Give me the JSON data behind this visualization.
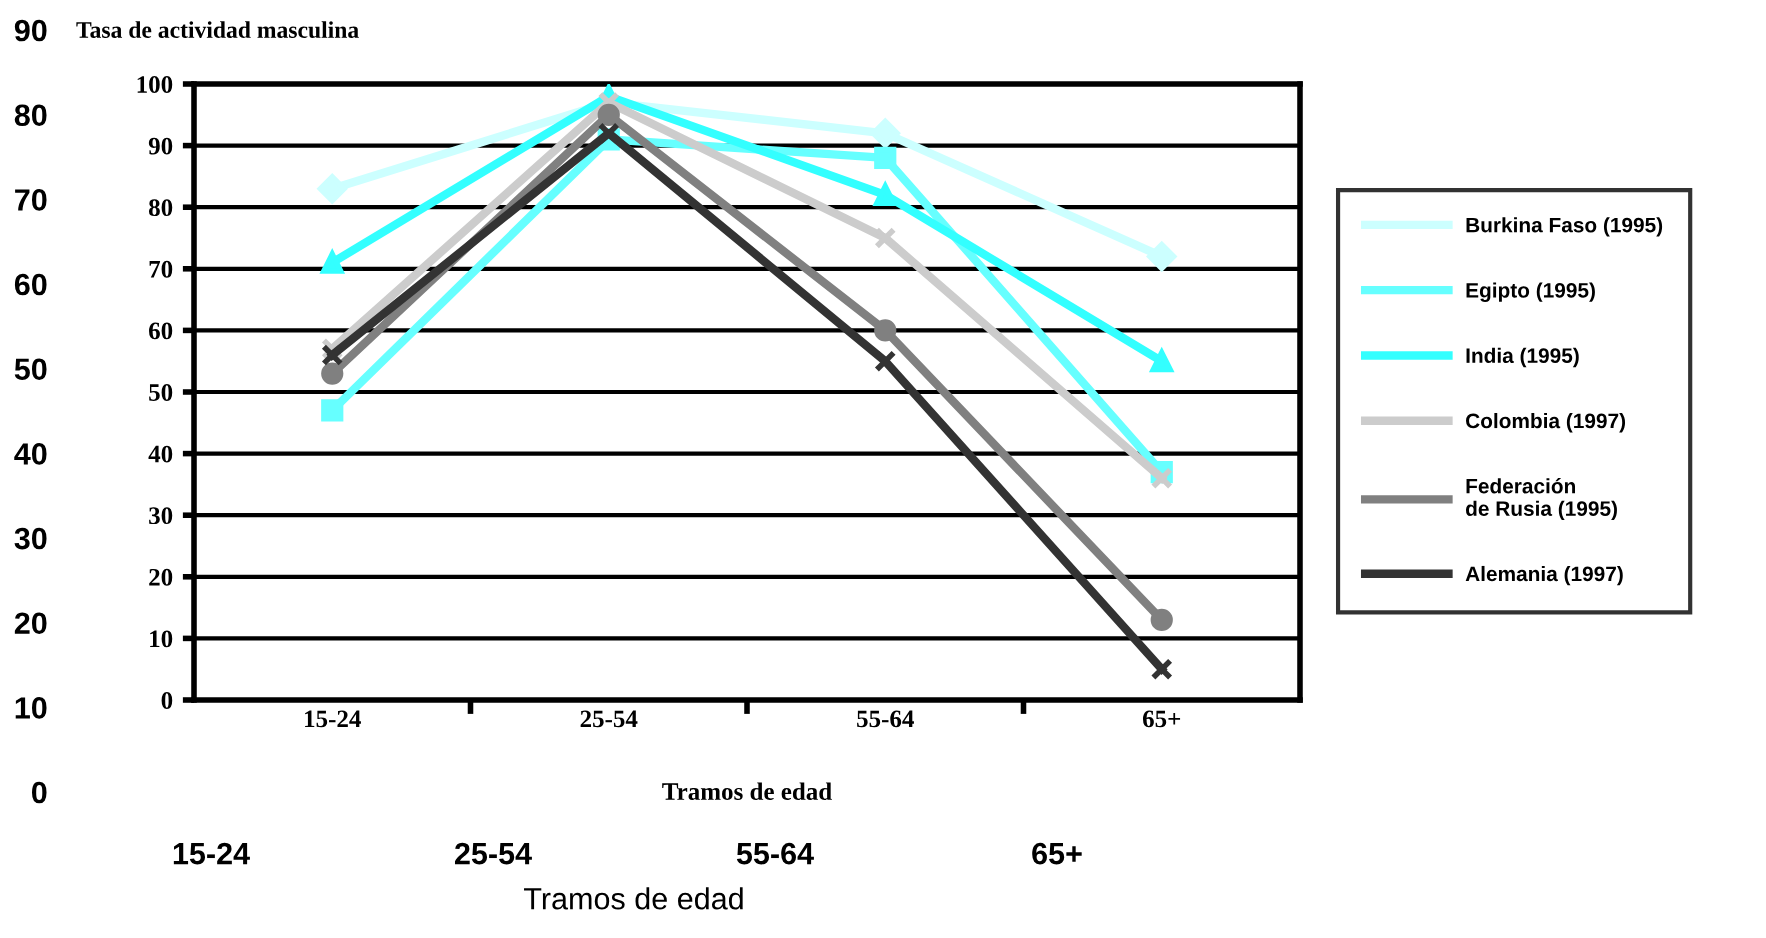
{
  "chart_data": [
    {
      "type": "line",
      "title": "Tasa de actividad masculina",
      "xlabel": "Tramos de edad",
      "categories": [
        "15-24",
        "25-54",
        "55-64",
        "65+"
      ],
      "ylim": [
        0,
        100
      ],
      "yticks": [
        0,
        10,
        20,
        30,
        40,
        50,
        60,
        70,
        80,
        90,
        100
      ],
      "grid": "y",
      "legend": "right",
      "series": [
        {
          "name": "Burkina Faso (1995)",
          "color": "#ccffff",
          "marker": "diamond",
          "values": [
            83,
            97,
            92,
            72
          ]
        },
        {
          "name": "Egipto (1995)",
          "color": "#66ffff",
          "marker": "square",
          "values": [
            47,
            91,
            88,
            37
          ]
        },
        {
          "name": "India (1995)",
          "color": "#33ffff",
          "marker": "triangle",
          "values": [
            71,
            98,
            82,
            55
          ]
        },
        {
          "name": "Colombia (1997)",
          "color": "#cccccc",
          "marker": "cross",
          "values": [
            57,
            97,
            75,
            36
          ]
        },
        {
          "name": "Federación\nde Rusia (1995)",
          "color": "#808080",
          "marker": "circle",
          "values": [
            53,
            95,
            60,
            13
          ]
        },
        {
          "name": "Alemania (1997)",
          "color": "#333333",
          "marker": "cross",
          "values": [
            56,
            92,
            55,
            5
          ]
        }
      ]
    },
    {
      "type": "line",
      "xlabel": "Tramos de edad",
      "categories": [
        "15-24",
        "25-54",
        "55-64",
        "65+"
      ],
      "ylim": [
        0,
        90
      ],
      "yticks": [
        0,
        10,
        20,
        30,
        40,
        50,
        60,
        70,
        80,
        90
      ],
      "grid": false
    }
  ]
}
